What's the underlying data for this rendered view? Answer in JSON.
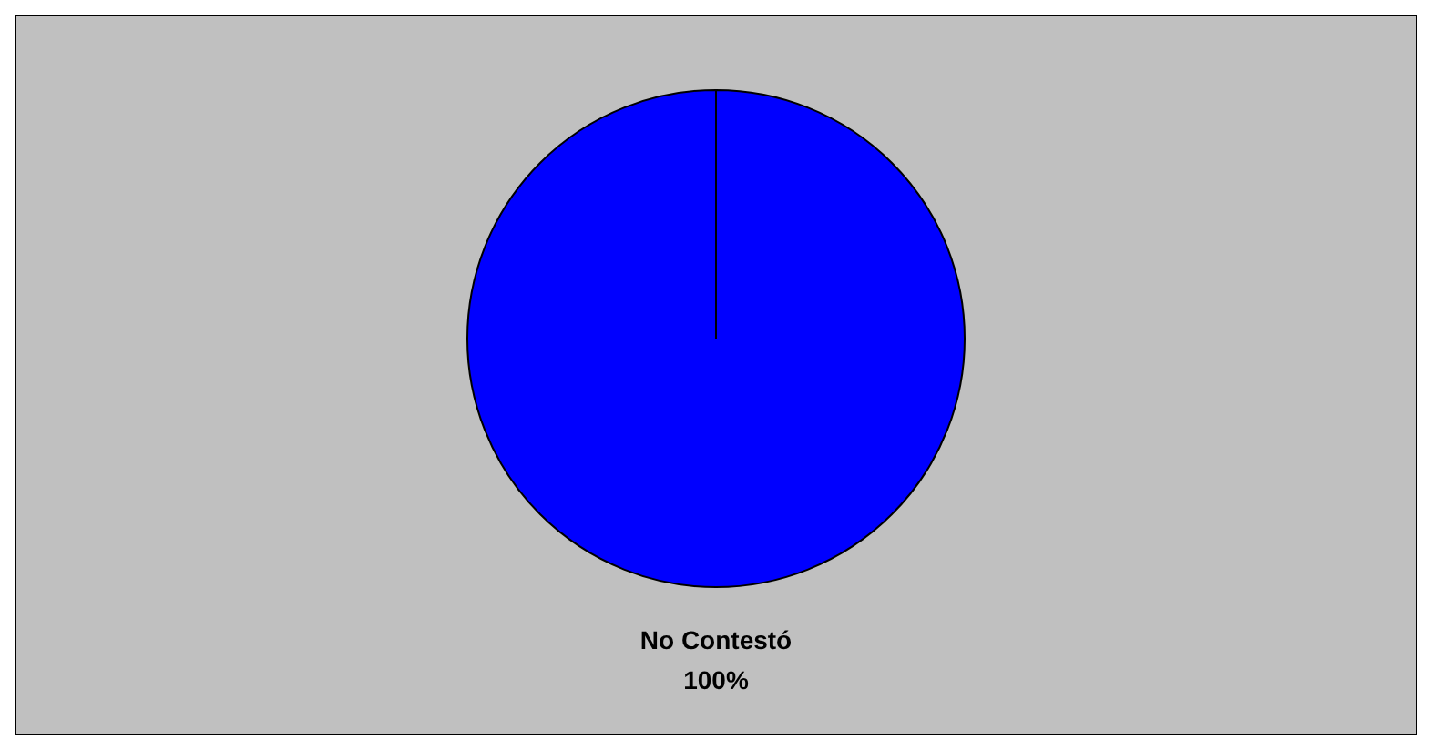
{
  "chart_data": {
    "type": "pie",
    "categories": [
      "No Contestó"
    ],
    "values": [
      100
    ],
    "colors": [
      "#0000ff"
    ],
    "value_labels": [
      "100%"
    ]
  }
}
